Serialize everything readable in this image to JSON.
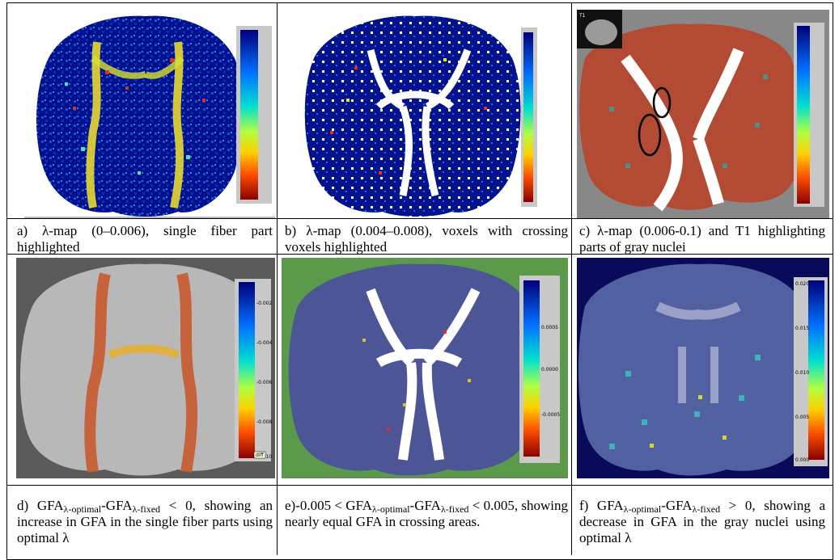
{
  "panels": {
    "a": {
      "caption": "a) λ-map (0–0.006), single fiber part highlighted"
    },
    "b": {
      "caption": "b) λ-map (0.004–0.008), voxels with crossing voxels highlighted"
    },
    "c": {
      "caption": "c)  λ-map  (0.006-0.1)  and  T1 highlighting parts of gray nuclei",
      "inset_label": "T1"
    },
    "d": {
      "cap_prefix": "d)  GFA",
      "sub1": "λ-optimal",
      "mid": "-GFA",
      "sub2": "λ-fixed",
      "cap_rest": "  <  0, showing an increase in GFA in the single fiber parts using optimal λ",
      "ticks": [
        "-0.002",
        "-0.004",
        "-0.006",
        "-0.008",
        "-0.010"
      ],
      "tag": "diff"
    },
    "e": {
      "cap_prefix": "e)-0.005 < GFA",
      "sub1": "λ-optimal",
      "mid": "-GFA",
      "sub2": "λ-fixed",
      "cap_rest": " < 0.005, showing nearly equal GFA in crossing areas.",
      "ticks": [
        "0.0005",
        "0.0000",
        "-0.0005"
      ]
    },
    "f": {
      "cap_prefix": "f)  GFA",
      "sub1": "λ-optimal",
      "mid": "-GFA",
      "sub2": "λ-fixed",
      "cap_rest": "  >  0, showing a decrease in GFA in the gray nuclei using optimal λ",
      "ticks": [
        "0.020",
        "0.015",
        "0.010",
        "0.005",
        "0.000"
      ]
    }
  },
  "colors": {
    "cold": "#000088",
    "mid": "#00c8c8",
    "warm": "#ffd200",
    "hot": "#aa0000",
    "background_gray": "#7a7a7a",
    "green_overlay": "#5a9a4a"
  }
}
